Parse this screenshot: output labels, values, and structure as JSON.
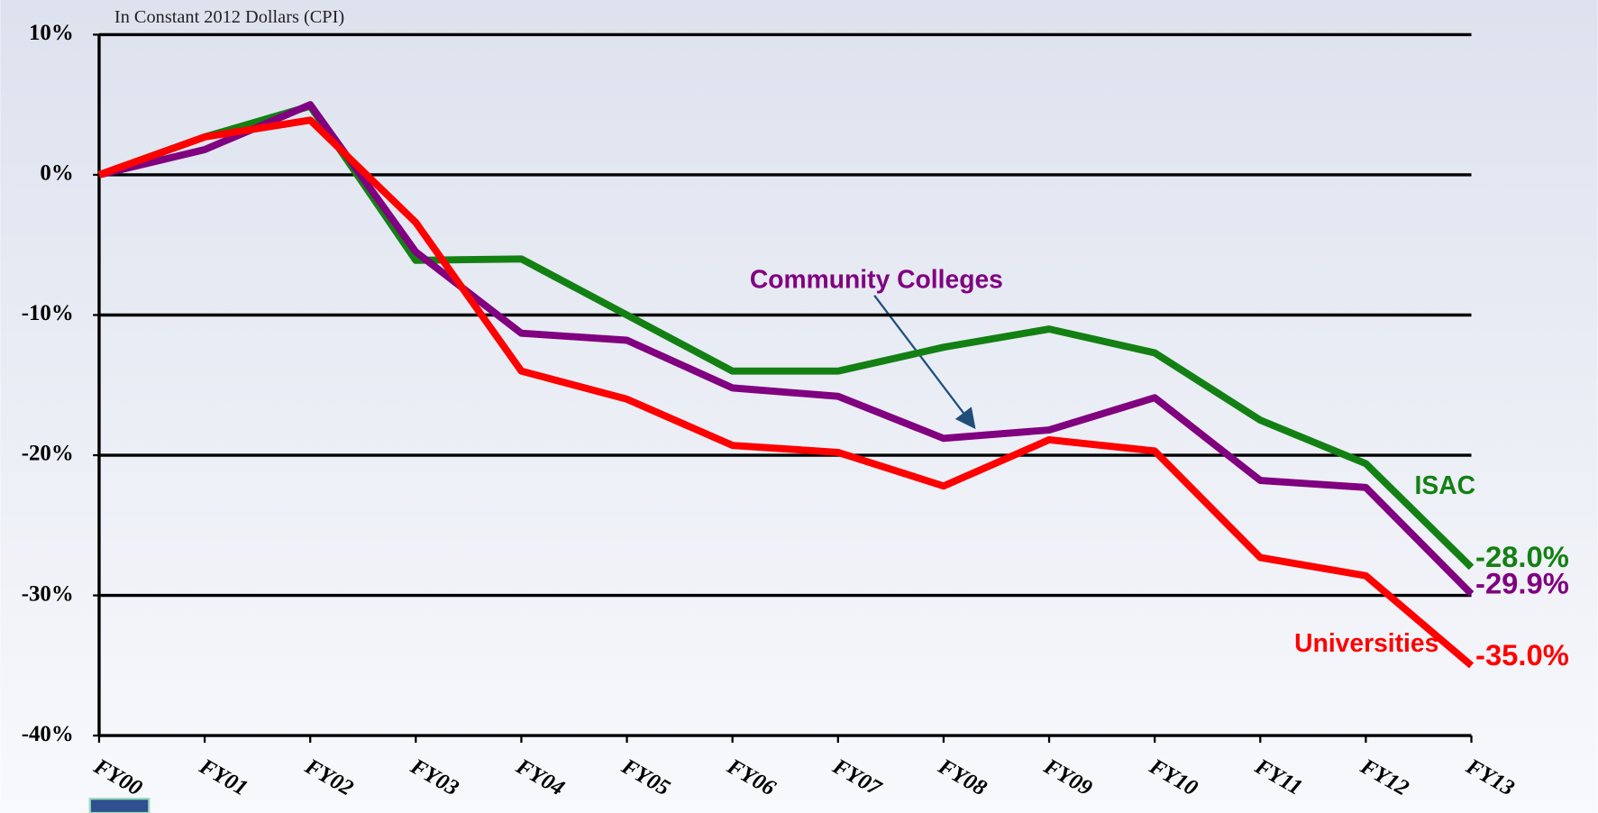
{
  "chart_data": {
    "type": "line",
    "subtitle": "In Constant 2012 Dollars (CPI)",
    "categories": [
      "FY00",
      "FY01",
      "FY02",
      "FY03",
      "FY04",
      "FY05",
      "FY06",
      "FY07",
      "FY08",
      "FY09",
      "FY10",
      "FY11",
      "FY12",
      "FY13"
    ],
    "series": [
      {
        "name": "ISAC",
        "color": "#138013",
        "values": [
          0,
          2.7,
          4.9,
          -6.1,
          -6.0,
          -10.0,
          -14.0,
          -14.0,
          -12.3,
          -11.0,
          -12.7,
          -17.5,
          -20.6,
          -28.0
        ],
        "value_labels": [
          null,
          null,
          null,
          null,
          null,
          null,
          null,
          null,
          null,
          null,
          null,
          null,
          null,
          "-28.0%"
        ]
      },
      {
        "name": "Community Colleges",
        "color": "#800080",
        "values": [
          0,
          1.8,
          5.0,
          -5.5,
          -11.3,
          -11.8,
          -15.2,
          -15.8,
          -18.8,
          -18.2,
          -15.9,
          -21.8,
          -22.3,
          -29.9
        ],
        "value_labels": [
          null,
          null,
          null,
          null,
          null,
          null,
          null,
          null,
          null,
          null,
          null,
          null,
          null,
          "-29.9%"
        ]
      },
      {
        "name": "Universities",
        "color": "#ff0000",
        "values": [
          0,
          2.7,
          3.9,
          -3.4,
          -14.0,
          -16.0,
          -19.3,
          -19.8,
          -22.2,
          -18.9,
          -19.7,
          -27.3,
          -28.6,
          -35.0
        ],
        "value_labels": [
          null,
          null,
          null,
          null,
          null,
          null,
          null,
          null,
          null,
          null,
          null,
          null,
          null,
          "-35.0%"
        ]
      }
    ],
    "ylim": [
      -40,
      10
    ],
    "yticks": [
      {
        "value": -40,
        "label": "-40%"
      },
      {
        "value": -30,
        "label": "-30%"
      },
      {
        "value": -20,
        "label": "-20%"
      },
      {
        "value": -10,
        "label": "-10%"
      },
      {
        "value": 0,
        "label": "0%"
      },
      {
        "value": 10,
        "label": "10%"
      }
    ],
    "grid": true
  }
}
